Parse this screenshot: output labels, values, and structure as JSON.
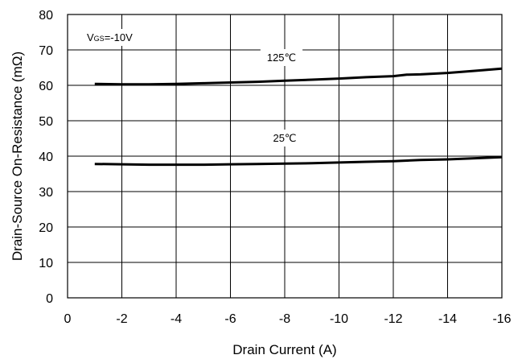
{
  "chart_data": {
    "type": "line",
    "xlabel": "Drain Current (A)",
    "ylabel": "Drain-Source On-Resistance (mΩ)",
    "xlim": [
      0,
      -16
    ],
    "ylim": [
      0,
      80
    ],
    "x_ticks": [
      "0",
      "-2",
      "-4",
      "-6",
      "-8",
      "-10",
      "-12",
      "-14",
      "-16"
    ],
    "y_ticks": [
      "0",
      "10",
      "20",
      "30",
      "40",
      "50",
      "60",
      "70",
      "80"
    ],
    "grid": true,
    "annotations": {
      "condition_main": "V",
      "condition_sub": "GS",
      "condition_rest": "=-10V"
    },
    "series": [
      {
        "name": "125℃",
        "color": "#000000",
        "x": [
          -1,
          -2,
          -3,
          -4,
          -5,
          -6,
          -7,
          -8,
          -9,
          -10,
          -11,
          -12,
          -12.5,
          -13,
          -14,
          -15,
          -16
        ],
        "y": [
          60.4,
          60.3,
          60.3,
          60.4,
          60.6,
          60.8,
          61.0,
          61.3,
          61.6,
          61.9,
          62.3,
          62.6,
          63.0,
          63.1,
          63.5,
          64.1,
          64.7
        ]
      },
      {
        "name": "25℃",
        "color": "#000000",
        "x": [
          -1,
          -2,
          -3,
          -4,
          -5,
          -6,
          -7,
          -8,
          -9,
          -10,
          -11,
          -12,
          -13,
          -14,
          -15,
          -16
        ],
        "y": [
          37.8,
          37.7,
          37.6,
          37.6,
          37.6,
          37.7,
          37.8,
          37.9,
          38.0,
          38.2,
          38.4,
          38.6,
          38.9,
          39.1,
          39.4,
          39.7
        ]
      }
    ]
  }
}
